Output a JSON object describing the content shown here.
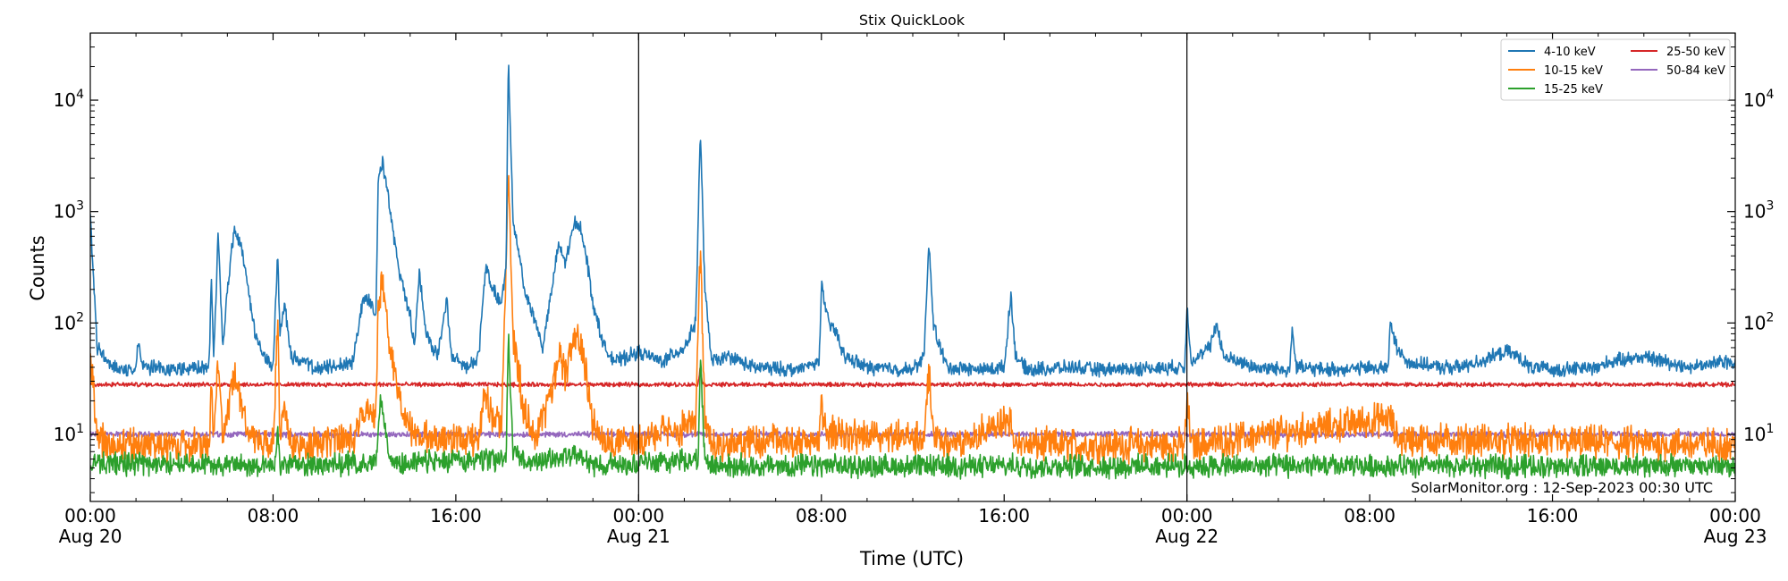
{
  "chart_data": {
    "type": "line",
    "title": "Stix QuickLook",
    "xlabel": "Time (UTC)",
    "ylabel": "Counts",
    "yscale": "log",
    "ylim": [
      2.5,
      40000
    ],
    "xlim_hours": [
      0,
      72
    ],
    "grid": false,
    "legend_position": "top-right",
    "x_ticks": [
      {
        "hour": 0,
        "label": "00:00",
        "date": "Aug 20"
      },
      {
        "hour": 8,
        "label": "08:00",
        "date": ""
      },
      {
        "hour": 16,
        "label": "16:00",
        "date": ""
      },
      {
        "hour": 24,
        "label": "00:00",
        "date": "Aug 21"
      },
      {
        "hour": 32,
        "label": "08:00",
        "date": ""
      },
      {
        "hour": 40,
        "label": "16:00",
        "date": ""
      },
      {
        "hour": 48,
        "label": "00:00",
        "date": "Aug 22"
      },
      {
        "hour": 56,
        "label": "08:00",
        "date": ""
      },
      {
        "hour": 64,
        "label": "16:00",
        "date": ""
      },
      {
        "hour": 72,
        "label": "00:00",
        "date": "Aug 23"
      }
    ],
    "y_ticks": [
      {
        "value": 10,
        "base": "10",
        "exp": "1"
      },
      {
        "value": 100,
        "base": "10",
        "exp": "2"
      },
      {
        "value": 1000,
        "base": "10",
        "exp": "3"
      },
      {
        "value": 10000,
        "base": "10",
        "exp": "4"
      }
    ],
    "day_boundaries_hours": [
      24,
      48
    ],
    "annotation": "SolarMonitor.org : 12-Sep-2023 00:30 UTC",
    "series": [
      {
        "name": "4-10 keV",
        "color": "#1f77b4",
        "baseline": 38,
        "noise": 0.05,
        "points": [
          [
            0,
            900
          ],
          [
            0.3,
            60
          ],
          [
            1,
            40
          ],
          [
            2,
            38
          ],
          [
            2.1,
            70
          ],
          [
            2.3,
            40
          ],
          [
            4,
            38
          ],
          [
            5.2,
            40
          ],
          [
            5.3,
            280
          ],
          [
            5.4,
            45
          ],
          [
            5.6,
            650
          ],
          [
            5.8,
            60
          ],
          [
            6,
            200
          ],
          [
            6.3,
            700
          ],
          [
            6.6,
            500
          ],
          [
            6.9,
            200
          ],
          [
            7.2,
            80
          ],
          [
            7.6,
            50
          ],
          [
            8,
            40
          ],
          [
            8.2,
            420
          ],
          [
            8.3,
            80
          ],
          [
            8.5,
            150
          ],
          [
            8.8,
            50
          ],
          [
            10,
            38
          ],
          [
            11.5,
            45
          ],
          [
            11.9,
            150
          ],
          [
            12.2,
            170
          ],
          [
            12.5,
            120
          ],
          [
            12.6,
            2000
          ],
          [
            12.8,
            2800
          ],
          [
            13,
            1500
          ],
          [
            13.5,
            300
          ],
          [
            14,
            120
          ],
          [
            14.2,
            60
          ],
          [
            14.4,
            300
          ],
          [
            14.7,
            80
          ],
          [
            15.2,
            50
          ],
          [
            15.6,
            160
          ],
          [
            15.8,
            50
          ],
          [
            16.5,
            40
          ],
          [
            17,
            50
          ],
          [
            17.3,
            320
          ],
          [
            17.6,
            200
          ],
          [
            18,
            150
          ],
          [
            18.2,
            300
          ],
          [
            18.3,
            25000
          ],
          [
            18.5,
            800
          ],
          [
            18.8,
            400
          ],
          [
            19,
            200
          ],
          [
            19.5,
            100
          ],
          [
            19.8,
            60
          ],
          [
            20.2,
            200
          ],
          [
            20.5,
            500
          ],
          [
            20.8,
            350
          ],
          [
            21.2,
            800
          ],
          [
            21.5,
            700
          ],
          [
            21.8,
            300
          ],
          [
            22,
            150
          ],
          [
            22.5,
            60
          ],
          [
            23,
            45
          ],
          [
            24,
            55
          ],
          [
            25,
            45
          ],
          [
            26,
            60
          ],
          [
            26.5,
            100
          ],
          [
            26.7,
            5500
          ],
          [
            26.9,
            200
          ],
          [
            27.2,
            45
          ],
          [
            28,
            50
          ],
          [
            29,
            40
          ],
          [
            31,
            38
          ],
          [
            31.9,
            45
          ],
          [
            32,
            220
          ],
          [
            32.3,
            100
          ],
          [
            32.7,
            80
          ],
          [
            33,
            50
          ],
          [
            34,
            40
          ],
          [
            36,
            38
          ],
          [
            36.5,
            50
          ],
          [
            36.7,
            550
          ],
          [
            36.9,
            100
          ],
          [
            37.2,
            60
          ],
          [
            37.5,
            40
          ],
          [
            39,
            38
          ],
          [
            40,
            40
          ],
          [
            40.3,
            180
          ],
          [
            40.5,
            50
          ],
          [
            41,
            38
          ],
          [
            43,
            40
          ],
          [
            44,
            38
          ],
          [
            47.9,
            40
          ],
          [
            48,
            140
          ],
          [
            48.2,
            45
          ],
          [
            49,
            60
          ],
          [
            49.3,
            100
          ],
          [
            49.6,
            50
          ],
          [
            51,
            40
          ],
          [
            52.5,
            38
          ],
          [
            52.6,
            90
          ],
          [
            52.8,
            40
          ],
          [
            54,
            38
          ],
          [
            56.8,
            40
          ],
          [
            56.9,
            95
          ],
          [
            57.2,
            60
          ],
          [
            57.6,
            45
          ],
          [
            59,
            40
          ],
          [
            60,
            40
          ],
          [
            62,
            55
          ],
          [
            62.5,
            50
          ],
          [
            63,
            40
          ],
          [
            64,
            38
          ],
          [
            66,
            40
          ],
          [
            66.5,
            45
          ],
          [
            68,
            50
          ],
          [
            69,
            45
          ],
          [
            70,
            40
          ],
          [
            71.5,
            45
          ],
          [
            72,
            45
          ]
        ]
      },
      {
        "name": "10-15 keV",
        "color": "#ff7f0e",
        "baseline": 8,
        "noise": 0.12,
        "points": [
          [
            0,
            60
          ],
          [
            0.3,
            9
          ],
          [
            1,
            8
          ],
          [
            5.2,
            8
          ],
          [
            5.3,
            30
          ],
          [
            5.4,
            9
          ],
          [
            5.6,
            50
          ],
          [
            5.8,
            9
          ],
          [
            6.3,
            35
          ],
          [
            6.6,
            20
          ],
          [
            7,
            9
          ],
          [
            8,
            8
          ],
          [
            8.2,
            100
          ],
          [
            8.3,
            9
          ],
          [
            8.5,
            20
          ],
          [
            8.8,
            8
          ],
          [
            11.5,
            9
          ],
          [
            11.9,
            15
          ],
          [
            12.2,
            18
          ],
          [
            12.5,
            14
          ],
          [
            12.6,
            150
          ],
          [
            12.8,
            250
          ],
          [
            13,
            100
          ],
          [
            13.5,
            20
          ],
          [
            14,
            12
          ],
          [
            14.5,
            9
          ],
          [
            17,
            9
          ],
          [
            17.3,
            25
          ],
          [
            17.6,
            15
          ],
          [
            18,
            12
          ],
          [
            18.3,
            2500
          ],
          [
            18.5,
            80
          ],
          [
            18.8,
            30
          ],
          [
            19,
            15
          ],
          [
            19.5,
            10
          ],
          [
            20.2,
            25
          ],
          [
            20.5,
            50
          ],
          [
            20.8,
            35
          ],
          [
            21.2,
            80
          ],
          [
            21.5,
            60
          ],
          [
            21.8,
            25
          ],
          [
            22,
            12
          ],
          [
            23,
            8
          ],
          [
            26.5,
            12
          ],
          [
            26.7,
            450
          ],
          [
            26.9,
            14
          ],
          [
            27.2,
            8
          ],
          [
            31.9,
            9
          ],
          [
            32,
            18
          ],
          [
            32.3,
            10
          ],
          [
            36.5,
            9
          ],
          [
            36.7,
            40
          ],
          [
            36.9,
            10
          ],
          [
            37.5,
            8
          ],
          [
            40.3,
            13
          ],
          [
            40.5,
            8
          ],
          [
            47.9,
            8
          ],
          [
            48,
            20
          ],
          [
            48.2,
            8
          ],
          [
            56.9,
            14
          ],
          [
            57.2,
            9
          ],
          [
            72,
            8
          ]
        ]
      },
      {
        "name": "15-25 keV",
        "color": "#2ca02c",
        "baseline": 5.2,
        "noise": 0.08,
        "points": [
          [
            0,
            5.5
          ],
          [
            8.1,
            5.3
          ],
          [
            8.2,
            12
          ],
          [
            8.3,
            5.3
          ],
          [
            12.5,
            5.5
          ],
          [
            12.7,
            20
          ],
          [
            12.9,
            12
          ],
          [
            13.2,
            5.5
          ],
          [
            18.2,
            6
          ],
          [
            18.3,
            80
          ],
          [
            18.5,
            7
          ],
          [
            19,
            5.5
          ],
          [
            21,
            6.5
          ],
          [
            21.5,
            6
          ],
          [
            22,
            5.3
          ],
          [
            26.6,
            6
          ],
          [
            26.7,
            45
          ],
          [
            26.9,
            6
          ],
          [
            27.2,
            5.2
          ],
          [
            72,
            5.2
          ]
        ]
      },
      {
        "name": "25-50 keV",
        "color": "#d62728",
        "baseline": 28,
        "noise": 0.015,
        "points": [
          [
            0,
            28
          ],
          [
            26.6,
            28
          ],
          [
            26.7,
            40
          ],
          [
            26.8,
            28
          ],
          [
            72,
            28
          ]
        ]
      },
      {
        "name": "50-84 keV",
        "color": "#9467bd",
        "baseline": 10,
        "noise": 0.02,
        "points": [
          [
            0,
            10
          ],
          [
            72,
            10
          ]
        ]
      }
    ]
  }
}
